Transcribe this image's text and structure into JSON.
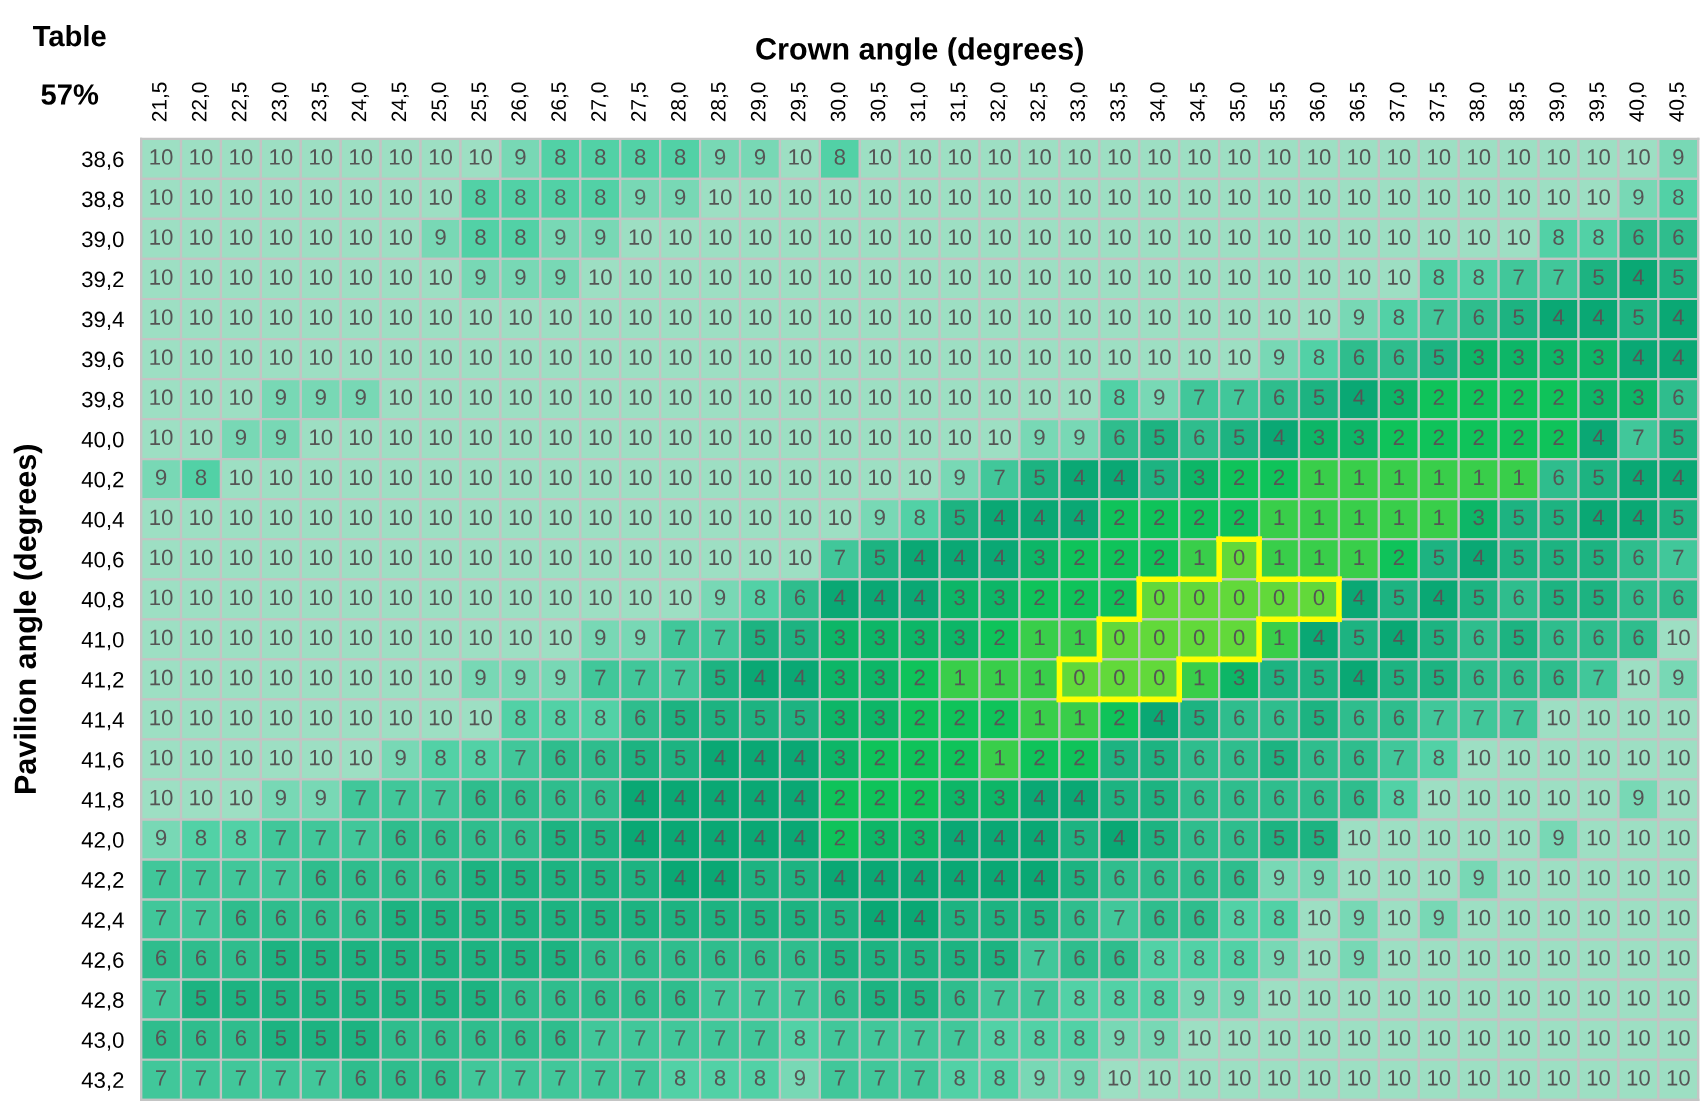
{
  "chart_data": {
    "type": "heatmap",
    "title": "Table",
    "subtitle": "57%",
    "xlabel": "Crown angle (degrees)",
    "ylabel": "Pavilion angle (degrees)",
    "categories": [
      "21,5",
      "22,0",
      "22,5",
      "23,0",
      "23,5",
      "24,0",
      "24,5",
      "25,0",
      "25,5",
      "26,0",
      "26,5",
      "27,0",
      "27,5",
      "28,0",
      "28,5",
      "29,0",
      "29,5",
      "30,0",
      "30,5",
      "31,0",
      "31,5",
      "32,0",
      "32,5",
      "33,0",
      "33,5",
      "34,0",
      "34,5",
      "35,0",
      "35,5",
      "36,0",
      "36,5",
      "37,0",
      "37,5",
      "38,0",
      "38,5",
      "39,0",
      "39,5",
      "40,0",
      "40,5"
    ],
    "y_categories": [
      "38,6",
      "38,8",
      "39,0",
      "39,2",
      "39,4",
      "39,6",
      "39,8",
      "40,0",
      "40,2",
      "40,4",
      "40,6",
      "40,8",
      "41,0",
      "41,2",
      "41,4",
      "41,6",
      "41,8",
      "42,0",
      "42,2",
      "42,4",
      "42,6",
      "42,8",
      "43,0",
      "43,2"
    ],
    "cells": [
      [
        10,
        10,
        10,
        10,
        10,
        10,
        10,
        10,
        10,
        9,
        8,
        8,
        8,
        8,
        9,
        9,
        10,
        8,
        10,
        10,
        10,
        10,
        10,
        10,
        10,
        10,
        10,
        10,
        10,
        10,
        10,
        10,
        10,
        10,
        10,
        10,
        10,
        10,
        9
      ],
      [
        10,
        10,
        10,
        10,
        10,
        10,
        10,
        10,
        8,
        8,
        8,
        8,
        9,
        9,
        10,
        10,
        10,
        10,
        10,
        10,
        10,
        10,
        10,
        10,
        10,
        10,
        10,
        10,
        10,
        10,
        10,
        10,
        10,
        10,
        10,
        10,
        10,
        9,
        8
      ],
      [
        10,
        10,
        10,
        10,
        10,
        10,
        10,
        9,
        8,
        8,
        9,
        9,
        10,
        10,
        10,
        10,
        10,
        10,
        10,
        10,
        10,
        10,
        10,
        10,
        10,
        10,
        10,
        10,
        10,
        10,
        10,
        10,
        10,
        10,
        10,
        8,
        8,
        6,
        6
      ],
      [
        10,
        10,
        10,
        10,
        10,
        10,
        10,
        10,
        9,
        9,
        9,
        10,
        10,
        10,
        10,
        10,
        10,
        10,
        10,
        10,
        10,
        10,
        10,
        10,
        10,
        10,
        10,
        10,
        10,
        10,
        10,
        10,
        8,
        8,
        7,
        7,
        5,
        4,
        5
      ],
      [
        10,
        10,
        10,
        10,
        10,
        10,
        10,
        10,
        10,
        10,
        10,
        10,
        10,
        10,
        10,
        10,
        10,
        10,
        10,
        10,
        10,
        10,
        10,
        10,
        10,
        10,
        10,
        10,
        10,
        10,
        9,
        8,
        7,
        6,
        5,
        4,
        4,
        5,
        4
      ],
      [
        10,
        10,
        10,
        10,
        10,
        10,
        10,
        10,
        10,
        10,
        10,
        10,
        10,
        10,
        10,
        10,
        10,
        10,
        10,
        10,
        10,
        10,
        10,
        10,
        10,
        10,
        10,
        10,
        9,
        8,
        6,
        6,
        5,
        3,
        3,
        3,
        3,
        4,
        4
      ],
      [
        10,
        10,
        10,
        9,
        9,
        9,
        10,
        10,
        10,
        10,
        10,
        10,
        10,
        10,
        10,
        10,
        10,
        10,
        10,
        10,
        10,
        10,
        10,
        10,
        8,
        9,
        7,
        7,
        6,
        5,
        4,
        3,
        2,
        2,
        2,
        2,
        3,
        3,
        6
      ],
      [
        10,
        10,
        9,
        9,
        10,
        10,
        10,
        10,
        10,
        10,
        10,
        10,
        10,
        10,
        10,
        10,
        10,
        10,
        10,
        10,
        10,
        10,
        9,
        9,
        6,
        5,
        6,
        5,
        4,
        3,
        3,
        2,
        2,
        2,
        2,
        2,
        4,
        7,
        5
      ],
      [
        9,
        8,
        10,
        10,
        10,
        10,
        10,
        10,
        10,
        10,
        10,
        10,
        10,
        10,
        10,
        10,
        10,
        10,
        10,
        10,
        9,
        7,
        5,
        4,
        4,
        5,
        3,
        2,
        2,
        1,
        1,
        1,
        1,
        1,
        1,
        6,
        5,
        4,
        4
      ],
      [
        10,
        10,
        10,
        10,
        10,
        10,
        10,
        10,
        10,
        10,
        10,
        10,
        10,
        10,
        10,
        10,
        10,
        10,
        9,
        8,
        5,
        4,
        4,
        4,
        2,
        2,
        2,
        2,
        1,
        1,
        1,
        1,
        1,
        3,
        5,
        5,
        4,
        4,
        5
      ],
      [
        10,
        10,
        10,
        10,
        10,
        10,
        10,
        10,
        10,
        10,
        10,
        10,
        10,
        10,
        10,
        10,
        10,
        7,
        5,
        4,
        4,
        4,
        3,
        2,
        2,
        2,
        1,
        0,
        1,
        1,
        1,
        2,
        5,
        4,
        5,
        5,
        5,
        6,
        7
      ],
      [
        10,
        10,
        10,
        10,
        10,
        10,
        10,
        10,
        10,
        10,
        10,
        10,
        10,
        10,
        9,
        8,
        6,
        4,
        4,
        4,
        3,
        3,
        2,
        2,
        2,
        0,
        0,
        0,
        0,
        0,
        4,
        5,
        4,
        5,
        6,
        5,
        5,
        6,
        6
      ],
      [
        10,
        10,
        10,
        10,
        10,
        10,
        10,
        10,
        10,
        10,
        10,
        9,
        9,
        7,
        7,
        5,
        5,
        3,
        3,
        3,
        3,
        2,
        1,
        1,
        0,
        0,
        0,
        0,
        1,
        4,
        5,
        4,
        5,
        6,
        5,
        6,
        6,
        6,
        10
      ],
      [
        10,
        10,
        10,
        10,
        10,
        10,
        10,
        10,
        9,
        9,
        9,
        7,
        7,
        7,
        5,
        4,
        4,
        3,
        3,
        2,
        1,
        1,
        1,
        0,
        0,
        0,
        1,
        3,
        5,
        5,
        4,
        5,
        5,
        6,
        6,
        6,
        7,
        10,
        9
      ],
      [
        10,
        10,
        10,
        10,
        10,
        10,
        10,
        10,
        10,
        8,
        8,
        8,
        6,
        5,
        5,
        5,
        5,
        3,
        3,
        2,
        2,
        2,
        1,
        1,
        2,
        4,
        5,
        6,
        6,
        5,
        6,
        6,
        7,
        7,
        7,
        10,
        10,
        10,
        10
      ],
      [
        10,
        10,
        10,
        10,
        10,
        10,
        9,
        8,
        8,
        7,
        6,
        6,
        5,
        5,
        4,
        4,
        4,
        3,
        2,
        2,
        2,
        1,
        2,
        2,
        5,
        5,
        6,
        6,
        5,
        6,
        6,
        7,
        8,
        10,
        10,
        10,
        10,
        10,
        10
      ],
      [
        10,
        10,
        10,
        9,
        9,
        7,
        7,
        7,
        6,
        6,
        6,
        6,
        4,
        4,
        4,
        4,
        4,
        2,
        2,
        2,
        3,
        3,
        4,
        4,
        5,
        5,
        6,
        6,
        6,
        6,
        6,
        8,
        10,
        10,
        10,
        10,
        10,
        9,
        10
      ],
      [
        9,
        8,
        8,
        7,
        7,
        7,
        6,
        6,
        6,
        6,
        5,
        5,
        4,
        4,
        4,
        4,
        4,
        2,
        3,
        3,
        4,
        4,
        4,
        5,
        4,
        5,
        6,
        6,
        5,
        5,
        10,
        10,
        10,
        10,
        10,
        9,
        10,
        10,
        10
      ],
      [
        7,
        7,
        7,
        7,
        6,
        6,
        6,
        6,
        5,
        5,
        5,
        5,
        5,
        4,
        4,
        5,
        5,
        4,
        4,
        4,
        4,
        4,
        4,
        5,
        6,
        6,
        6,
        6,
        9,
        9,
        10,
        10,
        10,
        9,
        10,
        10,
        10,
        10,
        10
      ],
      [
        7,
        7,
        6,
        6,
        6,
        6,
        5,
        5,
        5,
        5,
        5,
        5,
        5,
        5,
        5,
        5,
        5,
        5,
        4,
        4,
        5,
        5,
        5,
        6,
        7,
        6,
        6,
        8,
        8,
        10,
        9,
        10,
        9,
        10,
        10,
        10,
        10,
        10,
        10
      ],
      [
        6,
        6,
        6,
        5,
        5,
        5,
        5,
        5,
        5,
        5,
        5,
        6,
        6,
        6,
        6,
        6,
        6,
        5,
        5,
        5,
        5,
        5,
        7,
        6,
        6,
        8,
        8,
        8,
        9,
        10,
        9,
        10,
        10,
        10,
        10,
        10,
        10,
        10,
        10
      ],
      [
        7,
        5,
        5,
        5,
        5,
        5,
        5,
        5,
        5,
        6,
        6,
        6,
        6,
        6,
        7,
        7,
        7,
        6,
        5,
        5,
        6,
        7,
        7,
        8,
        8,
        8,
        9,
        9,
        10,
        10,
        10,
        10,
        10,
        10,
        10,
        10,
        10,
        10,
        10
      ],
      [
        6,
        6,
        6,
        5,
        5,
        5,
        6,
        6,
        6,
        6,
        6,
        7,
        7,
        7,
        7,
        7,
        8,
        7,
        7,
        7,
        7,
        8,
        8,
        8,
        9,
        9,
        10,
        10,
        10,
        10,
        10,
        10,
        10,
        10,
        10,
        10,
        10,
        10,
        10
      ],
      [
        7,
        7,
        7,
        7,
        7,
        6,
        6,
        6,
        7,
        7,
        7,
        7,
        7,
        8,
        8,
        8,
        9,
        7,
        7,
        7,
        8,
        8,
        9,
        9,
        10,
        10,
        10,
        10,
        10,
        10,
        10,
        10,
        10,
        10,
        10,
        10,
        10,
        10,
        10
      ]
    ],
    "colors": [
      "#62d93a",
      "#0fc35a",
      "#0aa874",
      "#2fbd8d",
      "#52d1a6",
      "#9ddfc3"
    ],
    "data_labels": true
  }
}
